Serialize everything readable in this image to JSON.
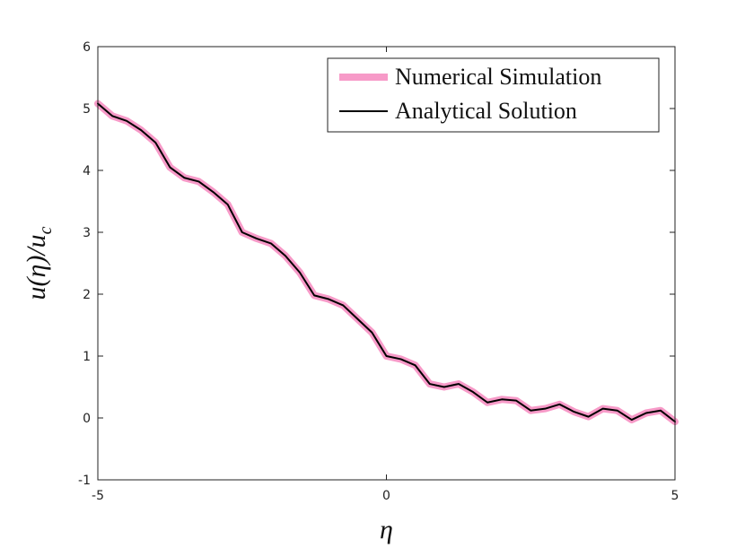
{
  "chart_data": {
    "type": "line",
    "xlabel": "η",
    "ylabel": "u(η)/u_c",
    "x": [
      -5,
      -4.75,
      -4.5,
      -4.25,
      -4,
      -3.75,
      -3.5,
      -3.25,
      -3,
      -2.75,
      -2.5,
      -2.25,
      -2,
      -1.75,
      -1.5,
      -1.25,
      -1,
      -0.75,
      -0.5,
      -0.25,
      0,
      0.25,
      0.5,
      0.75,
      1,
      1.25,
      1.5,
      1.75,
      2,
      2.25,
      2.5,
      2.75,
      3,
      3.25,
      3.5,
      3.75,
      4,
      4.25,
      4.5,
      4.75,
      5
    ],
    "series": [
      {
        "name": "Numerical Simulation",
        "color": "#f79ac8",
        "width": 8,
        "values": [
          5.08,
          4.88,
          4.8,
          4.65,
          4.45,
          4.05,
          3.88,
          3.82,
          3.65,
          3.45,
          3.0,
          2.9,
          2.82,
          2.62,
          2.35,
          1.98,
          1.92,
          1.82,
          1.6,
          1.38,
          1.0,
          0.95,
          0.85,
          0.55,
          0.5,
          0.55,
          0.42,
          0.25,
          0.3,
          0.28,
          0.12,
          0.15,
          0.22,
          0.1,
          0.02,
          0.15,
          0.12,
          -0.03,
          0.08,
          0.12,
          -0.06
        ]
      },
      {
        "name": "Analytical Solution",
        "color": "#000000",
        "width": 2,
        "values": [
          5.08,
          4.88,
          4.8,
          4.65,
          4.45,
          4.05,
          3.88,
          3.82,
          3.65,
          3.45,
          3.0,
          2.9,
          2.82,
          2.62,
          2.35,
          1.98,
          1.92,
          1.82,
          1.6,
          1.38,
          1.0,
          0.95,
          0.85,
          0.55,
          0.5,
          0.55,
          0.42,
          0.25,
          0.3,
          0.28,
          0.12,
          0.15,
          0.22,
          0.1,
          0.02,
          0.15,
          0.12,
          -0.03,
          0.08,
          0.12,
          -0.06
        ]
      }
    ],
    "xlim": [
      -5,
      5
    ],
    "xticks": [
      -5,
      0,
      5
    ],
    "ylim": [
      -1,
      6
    ],
    "yticks": [
      -1,
      0,
      1,
      2,
      3,
      4,
      5,
      6
    ],
    "legend": "upper-right"
  }
}
